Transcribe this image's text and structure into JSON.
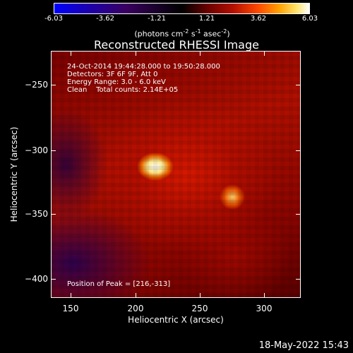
{
  "colorbar": {
    "ticks": [
      "-6.03",
      "-3.62",
      "-1.21",
      "1.21",
      "3.62",
      "6.03"
    ],
    "units_text": "(photons cm",
    "units_exp1": "-2",
    "units_mid1": " s",
    "units_exp2": "-1",
    "units_mid2": " asec",
    "units_exp3": "-2",
    "units_end": ")"
  },
  "title": "Reconstructed RHESSI Image",
  "info": {
    "time_range": "24-Oct-2014 19:44:28.000 to 19:50:28.000",
    "detectors": "Detectors: 3F 6F 9F, Att 0",
    "energy": "Energy Range: 3.0 - 6.0 keV",
    "clean": "Clean    Total counts: 2.14E+05",
    "peak": "Position of Peak = [216,-313]"
  },
  "axes": {
    "xlabel": "Heliocentric X (arcsec)",
    "ylabel": "Heliocentric Y (arcsec)",
    "xticks": [
      "150",
      "200",
      "250",
      "300"
    ],
    "yticks": [
      "−250",
      "−300",
      "−350",
      "−400"
    ]
  },
  "timestamp": "18-May-2022 15:43",
  "colors": {
    "background": "#000000",
    "peak_color": "#ffffff",
    "text": "#ffffff"
  }
}
